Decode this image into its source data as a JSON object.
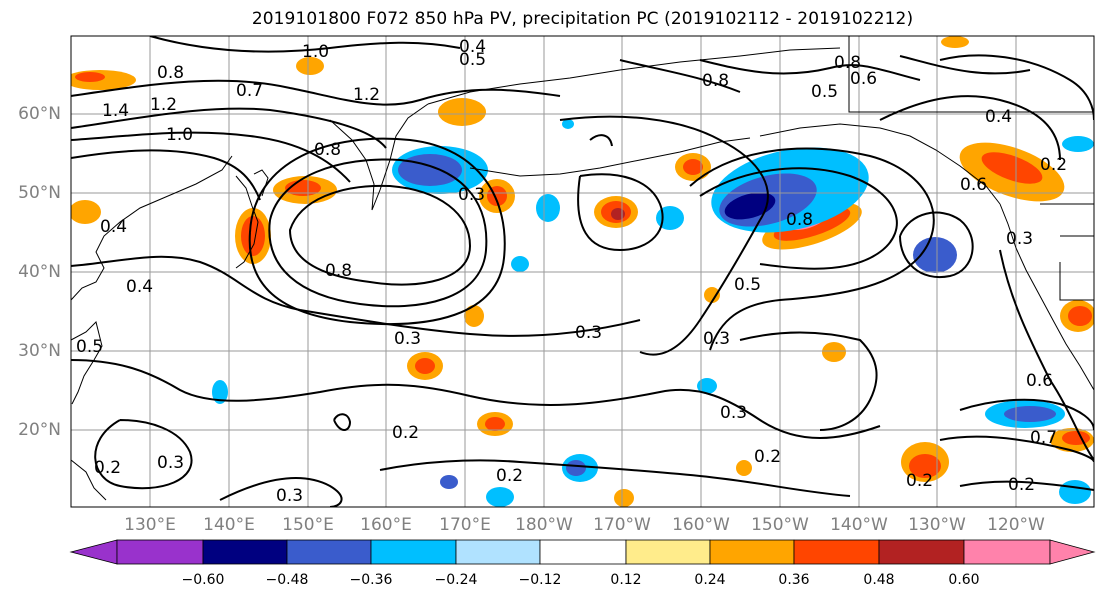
{
  "title": "2019101800 F072 850 hPa PV, precipitation PC (2019102112 - 2019102212)",
  "lat_labels": [
    "60°N",
    "50°N",
    "40°N",
    "30°N",
    "20°N"
  ],
  "lon_labels": [
    "130°E",
    "140°E",
    "150°E",
    "160°E",
    "170°E",
    "180°W",
    "170°W",
    "160°W",
    "150°W",
    "140°W",
    "130°W",
    "120°W"
  ],
  "colorbar": {
    "ticks": [
      "−0.60",
      "−0.48",
      "−0.36",
      "−0.24",
      "−0.12",
      "0.12",
      "0.24",
      "0.36",
      "0.48",
      "0.60"
    ],
    "colors": [
      "#9932cc",
      "#000080",
      "#3a5ccc",
      "#00bfff",
      "#b0e2ff",
      "#ffffff",
      "#ffec8b",
      "#ffa500",
      "#ff4500",
      "#b22222",
      "#ff82ab"
    ]
  },
  "contour_labels": [
    "1.0",
    "0.4",
    "0.5",
    "0.8",
    "0.7",
    "1.2",
    "1.4",
    "1.2",
    "1.0",
    "0.8",
    "0.8",
    "0.6",
    "0.5",
    "0.4",
    "0.2",
    "0.8",
    "0.3",
    "0.8",
    "0.3",
    "0.3",
    "0.5",
    "0.3",
    "0.3",
    "0.2",
    "0.2",
    "0.3",
    "0.2",
    "0.2",
    "0.3",
    "0.2",
    "0.2",
    "0.6",
    "0.7",
    "0.4",
    "0.6",
    "0.4",
    "0.3",
    "0.5",
    "0.8"
  ]
}
